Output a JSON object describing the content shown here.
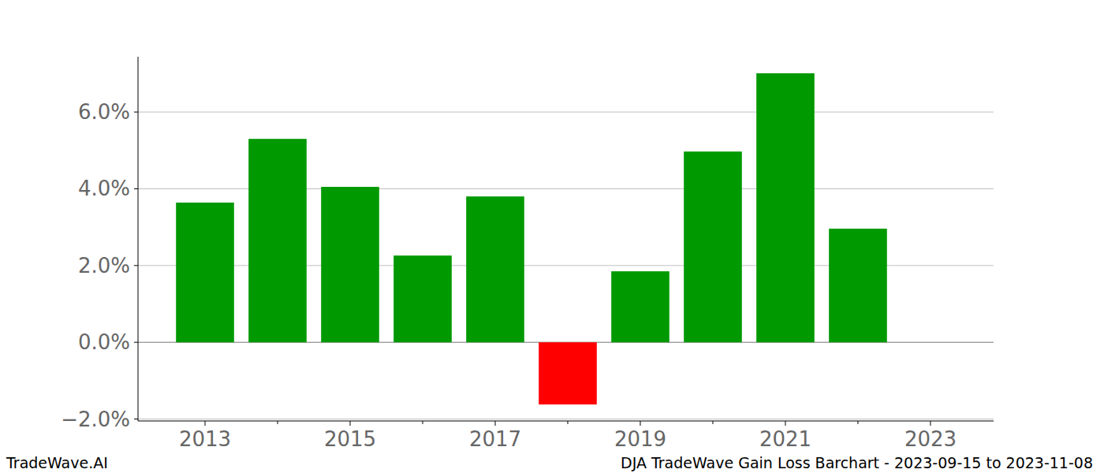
{
  "chart_data": {
    "type": "bar",
    "title": "DJA TradeWave Gain Loss Barchart - 2023-09-15 to 2023-11-08",
    "annotations": [
      "TradeWave.AI"
    ],
    "x": [
      2013,
      2014,
      2015,
      2016,
      2017,
      2018,
      2019,
      2020,
      2021,
      2022
    ],
    "values": [
      3.64,
      5.3,
      4.05,
      2.26,
      3.8,
      -1.62,
      1.85,
      4.97,
      7.01,
      2.96
    ],
    "colors": [
      "#009900",
      "#009900",
      "#009900",
      "#009900",
      "#009900",
      "#ff0000",
      "#009900",
      "#009900",
      "#009900",
      "#009900"
    ],
    "xlim": [
      2012.076,
      2023.87
    ],
    "xticks": [
      2013,
      2015,
      2017,
      2019,
      2021,
      2023
    ],
    "ylim": [
      -2.05,
      7.44
    ],
    "yticks": [
      {
        "value": -2,
        "label": "−2.0%"
      },
      {
        "value": 0,
        "label": "0.0%"
      },
      {
        "value": 2,
        "label": "2.0%"
      },
      {
        "value": 4,
        "label": "4.0%"
      },
      {
        "value": 6,
        "label": "6.0%"
      }
    ],
    "grid": true
  }
}
